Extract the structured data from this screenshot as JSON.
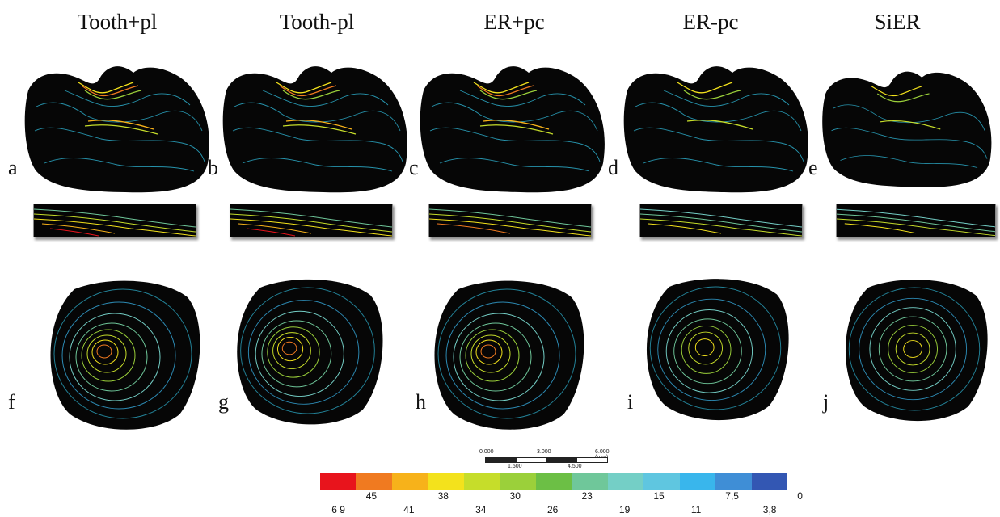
{
  "columns": [
    {
      "title": "Tooth+pl",
      "top_letter": "a",
      "bottom_letter": "f"
    },
    {
      "title": "Tooth-pl",
      "top_letter": "b",
      "bottom_letter": "g"
    },
    {
      "title": "ER+pc",
      "top_letter": "c",
      "bottom_letter": "h"
    },
    {
      "title": "ER-pc",
      "top_letter": "d",
      "bottom_letter": "i"
    },
    {
      "title": "SiER",
      "top_letter": "e",
      "bottom_letter": "j"
    }
  ],
  "scale_bar": {
    "top_ticks": [
      "0.000",
      "3.000",
      "6.000 (mm)"
    ],
    "bottom_ticks": [
      "1.500",
      "4.500"
    ]
  },
  "legend": {
    "colors": [
      "#e8141c",
      "#f07a20",
      "#f7b21a",
      "#f3e21c",
      "#c6dd2a",
      "#9bd03a",
      "#6cbf45",
      "#6fc79a",
      "#74cfc6",
      "#5fc6e0",
      "#39b6ec",
      "#3f8ed6",
      "#3357b3"
    ],
    "upper_labels": [
      "45",
      "38",
      "30",
      "23",
      "15",
      "7,5",
      "0"
    ],
    "lower_labels": [
      "6 9",
      "41",
      "34",
      "26",
      "19",
      "11",
      "3,8"
    ]
  }
}
